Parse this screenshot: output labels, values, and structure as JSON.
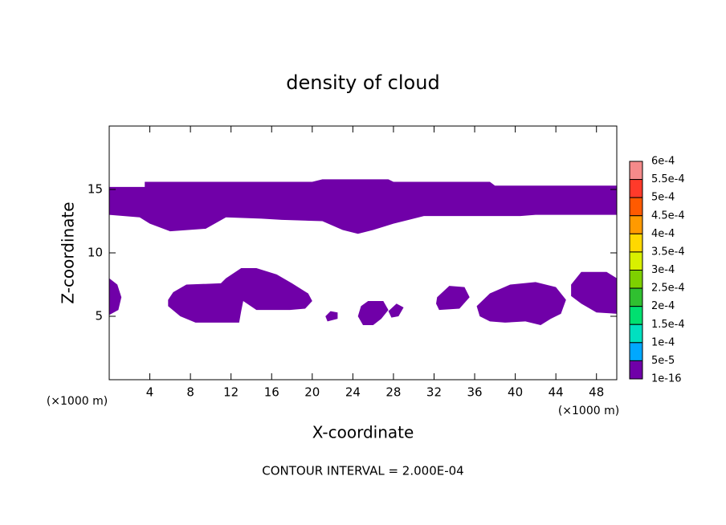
{
  "chart_data": {
    "type": "contour",
    "title": "density of cloud",
    "x_label": "X-coordinate",
    "y_label": "Z-coordinate",
    "x_unit_left": "(×1000 m)",
    "x_unit_right": "(×1000 m)",
    "footer": "CONTOUR INTERVAL = 2.000E-04",
    "xlim": [
      0,
      50
    ],
    "ylim": [
      0,
      20
    ],
    "xticks": [
      4,
      8,
      12,
      16,
      20,
      24,
      28,
      32,
      36,
      40,
      44,
      48
    ],
    "yticks": [
      5,
      10,
      15
    ],
    "colorbar": {
      "levels": [
        {
          "value": 0.0006,
          "label": "6e-4"
        },
        {
          "value": 0.00055,
          "label": "5.5e-4"
        },
        {
          "value": 0.0005,
          "label": "5e-4"
        },
        {
          "value": 0.00045,
          "label": "4.5e-4"
        },
        {
          "value": 0.0004,
          "label": "4e-4"
        },
        {
          "value": 0.00035,
          "label": "3.5e-4"
        },
        {
          "value": 0.0003,
          "label": "3e-4"
        },
        {
          "value": 0.00025,
          "label": "2.5e-4"
        },
        {
          "value": 0.0002,
          "label": "2e-4"
        },
        {
          "value": 0.00015,
          "label": "1.5e-4"
        },
        {
          "value": 0.0001,
          "label": "1e-4"
        },
        {
          "value": 5e-05,
          "label": "5e-5"
        },
        {
          "value": 1e-16,
          "label": "1e-16"
        }
      ],
      "colors": [
        "#f58a8a",
        "#ff3a2a",
        "#ff5a00",
        "#ff9a00",
        "#ffd800",
        "#d8f000",
        "#7ed000",
        "#30c030",
        "#00e070",
        "#00e0c0",
        "#00a8ff",
        "#0050ff",
        "#7000a8"
      ]
    },
    "regions": [
      {
        "level": 1e-16,
        "x": [
          0,
          3.5,
          3.5,
          20,
          21,
          27.5,
          28,
          37.5,
          38,
          50,
          50,
          42,
          40.5,
          31,
          28,
          26,
          24.5,
          23,
          21,
          17,
          15,
          11.5,
          9.5,
          6,
          4,
          3,
          0
        ],
        "z": [
          15.2,
          15.2,
          15.6,
          15.6,
          15.8,
          15.8,
          15.6,
          15.6,
          15.3,
          15.3,
          13,
          13,
          12.9,
          12.9,
          12.3,
          11.8,
          11.5,
          11.8,
          12.5,
          12.6,
          12.7,
          12.8,
          11.9,
          11.7,
          12.3,
          12.8,
          13
        ]
      },
      {
        "level": 1e-16,
        "x": [
          0,
          0.8,
          1.2,
          0.9,
          0
        ],
        "z": [
          8,
          7.5,
          6.5,
          5.5,
          5.1
        ]
      },
      {
        "level": 1e-16,
        "x": [
          5.8,
          6.3,
          7.6,
          11,
          11.5,
          13,
          14.5,
          16.5,
          18,
          19.6,
          20,
          19.3,
          17.8,
          14.5,
          13.2,
          13,
          12.8,
          8.5,
          7,
          5.8
        ],
        "z": [
          6.3,
          6.9,
          7.5,
          7.6,
          8,
          8.8,
          8.8,
          8.3,
          7.6,
          6.8,
          6.2,
          5.6,
          5.5,
          5.5,
          6.2,
          5.4,
          4.5,
          4.5,
          5,
          5.8
        ]
      },
      {
        "level": 1e-16,
        "x": [
          21.3,
          21.8,
          22.5,
          22.5,
          21.5
        ],
        "z": [
          5,
          5.4,
          5.3,
          4.8,
          4.6
        ]
      },
      {
        "level": 1e-16,
        "x": [
          24.8,
          25.5,
          27,
          27.5,
          26.8,
          26,
          25,
          24.5
        ],
        "z": [
          5.8,
          6.2,
          6.2,
          5.5,
          4.8,
          4.3,
          4.3,
          5
        ]
      },
      {
        "level": 1e-16,
        "x": [
          27.5,
          28.3,
          29,
          28.5,
          27.8
        ],
        "z": [
          5.4,
          6,
          5.7,
          5,
          4.9
        ]
      },
      {
        "level": 1e-16,
        "x": [
          32.3,
          33.5,
          35,
          35.5,
          34.5,
          32.5,
          32.2
        ],
        "z": [
          6.5,
          7.4,
          7.3,
          6.5,
          5.6,
          5.5,
          6
        ]
      },
      {
        "level": 1e-16,
        "x": [
          36.2,
          37.5,
          39.5,
          42,
          44,
          45,
          44.5,
          43.5,
          42.5,
          41,
          39,
          37.5,
          36.5
        ],
        "z": [
          5.8,
          6.8,
          7.5,
          7.7,
          7.3,
          6.3,
          5.2,
          4.8,
          4.3,
          4.6,
          4.5,
          4.6,
          5
        ]
      },
      {
        "level": 1e-16,
        "x": [
          45.5,
          46.5,
          49,
          50,
          50,
          48,
          46.5,
          45.5
        ],
        "z": [
          7.5,
          8.5,
          8.5,
          8,
          5.2,
          5.3,
          6,
          6.6
        ]
      }
    ]
  }
}
